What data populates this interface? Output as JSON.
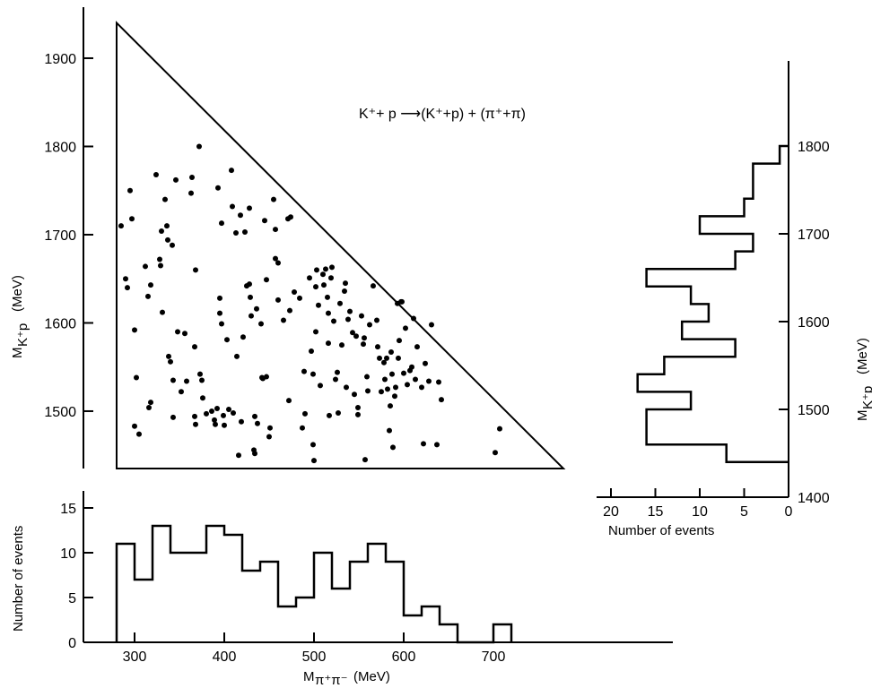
{
  "title": "K⁺+ p ⟶(K⁺+p) + (π⁺+π)",
  "chart_data": [
    {
      "type": "scatter",
      "name": "dalitz",
      "xlabel": "",
      "ylabel": "M_K+p (MeV)",
      "ylabel_main": "M",
      "ylabel_sub": "K⁺p",
      "ylabel_unit": "(MeV)",
      "xlim": [
        280,
        780
      ],
      "ylim": [
        1435,
        1945
      ],
      "y_ticks": [
        1500,
        1600,
        1700,
        1800,
        1900
      ],
      "y_tick_labels": [
        "1500",
        "1600",
        "1700",
        "1800",
        "1900"
      ],
      "boundary": [
        [
          280,
          1940
        ],
        [
          280,
          1435
        ],
        [
          778,
          1435
        ]
      ],
      "points": [
        [
          285,
          1710
        ],
        [
          290,
          1650
        ],
        [
          292,
          1640
        ],
        [
          295,
          1750
        ],
        [
          297,
          1718
        ],
        [
          300,
          1592
        ],
        [
          302,
          1538
        ],
        [
          300,
          1483
        ],
        [
          305,
          1474
        ],
        [
          312,
          1664
        ],
        [
          315,
          1630
        ],
        [
          318,
          1643
        ],
        [
          318,
          1510
        ],
        [
          316,
          1504
        ],
        [
          324,
          1768
        ],
        [
          328,
          1672
        ],
        [
          329,
          1665
        ],
        [
          330,
          1704
        ],
        [
          331,
          1612
        ],
        [
          334,
          1740
        ],
        [
          336,
          1710
        ],
        [
          337,
          1694
        ],
        [
          338,
          1562
        ],
        [
          340,
          1556
        ],
        [
          342,
          1688
        ],
        [
          343,
          1535
        ],
        [
          343,
          1493
        ],
        [
          346,
          1762
        ],
        [
          348,
          1590
        ],
        [
          352,
          1522
        ],
        [
          356,
          1588
        ],
        [
          358,
          1534
        ],
        [
          363,
          1747
        ],
        [
          364,
          1765
        ],
        [
          367,
          1573
        ],
        [
          367,
          1494
        ],
        [
          368,
          1485
        ],
        [
          368,
          1660
        ],
        [
          373,
          1542
        ],
        [
          375,
          1535
        ],
        [
          376,
          1515
        ],
        [
          372,
          1800
        ],
        [
          380,
          1497
        ],
        [
          386,
          1500
        ],
        [
          389,
          1490
        ],
        [
          390,
          1485
        ],
        [
          392,
          1503
        ],
        [
          393,
          1753
        ],
        [
          395,
          1628
        ],
        [
          395,
          1611
        ],
        [
          397,
          1599
        ],
        [
          397,
          1713
        ],
        [
          399,
          1495
        ],
        [
          400,
          1484
        ],
        [
          403,
          1581
        ],
        [
          405,
          1502
        ],
        [
          408,
          1773
        ],
        [
          409,
          1732
        ],
        [
          410,
          1498
        ],
        [
          413,
          1702
        ],
        [
          414,
          1562
        ],
        [
          416,
          1450
        ],
        [
          418,
          1722
        ],
        [
          419,
          1488
        ],
        [
          421,
          1584
        ],
        [
          423,
          1703
        ],
        [
          425,
          1642
        ],
        [
          428,
          1644
        ],
        [
          428,
          1730
        ],
        [
          429,
          1629
        ],
        [
          430,
          1608
        ],
        [
          433,
          1456
        ],
        [
          434,
          1452
        ],
        [
          434,
          1494
        ],
        [
          436,
          1616
        ],
        [
          437,
          1486
        ],
        [
          441,
          1599
        ],
        [
          442,
          1538
        ],
        [
          443,
          1537
        ],
        [
          445,
          1716
        ],
        [
          447,
          1649
        ],
        [
          447,
          1539
        ],
        [
          450,
          1471
        ],
        [
          451,
          1481
        ],
        [
          455,
          1740
        ],
        [
          457,
          1673
        ],
        [
          457,
          1706
        ],
        [
          460,
          1668
        ],
        [
          460,
          1626
        ],
        [
          466,
          1603
        ],
        [
          471,
          1718
        ],
        [
          472,
          1512
        ],
        [
          473,
          1614
        ],
        [
          474,
          1720
        ],
        [
          478,
          1635
        ],
        [
          484,
          1628
        ],
        [
          487,
          1481
        ],
        [
          489,
          1545
        ],
        [
          490,
          1497
        ],
        [
          495,
          1651
        ],
        [
          497,
          1568
        ],
        [
          499,
          1542
        ],
        [
          499,
          1462
        ],
        [
          500,
          1444
        ],
        [
          502,
          1590
        ],
        [
          502,
          1641
        ],
        [
          503,
          1660
        ],
        [
          505,
          1620
        ],
        [
          507,
          1529
        ],
        [
          510,
          1655
        ],
        [
          511,
          1643
        ],
        [
          513,
          1661
        ],
        [
          515,
          1629
        ],
        [
          516,
          1577
        ],
        [
          516,
          1611
        ],
        [
          517,
          1495
        ],
        [
          519,
          1651
        ],
        [
          520,
          1663
        ],
        [
          522,
          1602
        ],
        [
          524,
          1536
        ],
        [
          526,
          1544
        ],
        [
          527,
          1498
        ],
        [
          529,
          1622
        ],
        [
          531,
          1575
        ],
        [
          534,
          1636
        ],
        [
          535,
          1645
        ],
        [
          536,
          1527
        ],
        [
          538,
          1604
        ],
        [
          540,
          1613
        ],
        [
          543,
          1589
        ],
        [
          545,
          1519
        ],
        [
          547,
          1585
        ],
        [
          549,
          1504
        ],
        [
          549,
          1496
        ],
        [
          553,
          1608
        ],
        [
          555,
          1576
        ],
        [
          556,
          1583
        ],
        [
          557,
          1445
        ],
        [
          559,
          1539
        ],
        [
          560,
          1523
        ],
        [
          562,
          1598
        ],
        [
          566,
          1642
        ],
        [
          570,
          1603
        ],
        [
          571,
          1573
        ],
        [
          573,
          1560
        ],
        [
          575,
          1522
        ],
        [
          578,
          1555
        ],
        [
          579,
          1536
        ],
        [
          581,
          1560
        ],
        [
          582,
          1525
        ],
        [
          584,
          1478
        ],
        [
          585,
          1506
        ],
        [
          586,
          1567
        ],
        [
          587,
          1542
        ],
        [
          588,
          1459
        ],
        [
          590,
          1517
        ],
        [
          591,
          1527
        ],
        [
          593,
          1622
        ],
        [
          594,
          1560
        ],
        [
          595,
          1580
        ],
        [
          597,
          1624
        ],
        [
          598,
          1624
        ],
        [
          600,
          1543
        ],
        [
          602,
          1594
        ],
        [
          604,
          1530
        ],
        [
          607,
          1546
        ],
        [
          609,
          1550
        ],
        [
          611,
          1605
        ],
        [
          613,
          1536
        ],
        [
          615,
          1573
        ],
        [
          620,
          1527
        ],
        [
          622,
          1463
        ],
        [
          624,
          1554
        ],
        [
          628,
          1534
        ],
        [
          631,
          1598
        ],
        [
          637,
          1462
        ],
        [
          639,
          1533
        ],
        [
          642,
          1513
        ],
        [
          702,
          1453
        ],
        [
          707,
          1480
        ]
      ]
    },
    {
      "type": "bar",
      "name": "m-pipi-histogram",
      "orientation": "vertical",
      "xlabel": "M_π+π- (MeV)",
      "xlabel_main": "M",
      "xlabel_sub": "π⁺π⁻",
      "xlabel_unit": "(MeV)",
      "ylabel": "Number of events",
      "xlim": [
        250,
        750
      ],
      "ylim": [
        0,
        17
      ],
      "x_ticks": [
        300,
        400,
        500,
        600,
        700
      ],
      "x_tick_labels": [
        "300",
        "400",
        "500",
        "600",
        "700"
      ],
      "y_ticks": [
        0,
        5,
        10,
        15
      ],
      "y_tick_labels": [
        "0",
        "5",
        "10",
        "15"
      ],
      "bin_edges": [
        280,
        300,
        320,
        340,
        360,
        380,
        400,
        420,
        440,
        460,
        480,
        500,
        520,
        540,
        560,
        580,
        600,
        620,
        640,
        660,
        680,
        700,
        720
      ],
      "values": [
        11,
        7,
        13,
        10,
        10,
        13,
        12,
        8,
        9,
        4,
        5,
        10,
        6,
        9,
        11,
        9,
        3,
        4,
        2,
        0,
        0,
        2
      ]
    },
    {
      "type": "bar",
      "name": "m-kp-histogram",
      "orientation": "horizontal",
      "xlabel": "Number of events",
      "ylabel": "M_K+p (MeV)",
      "ylabel_main": "M",
      "ylabel_sub": "K⁺p",
      "ylabel_unit": "(MeV)",
      "xlim": [
        22,
        0
      ],
      "ylim": [
        1400,
        1890
      ],
      "x_ticks": [
        20,
        15,
        10,
        5,
        0
      ],
      "x_tick_labels": [
        "20",
        "15",
        "10",
        "5",
        "0"
      ],
      "y_ticks": [
        1400,
        1500,
        1600,
        1700,
        1800
      ],
      "y_tick_labels": [
        "1400",
        "1500",
        "1600",
        "1700",
        "1800"
      ],
      "bin_edges": [
        1440,
        1460,
        1480,
        1500,
        1520,
        1540,
        1560,
        1580,
        1600,
        1620,
        1640,
        1660,
        1680,
        1700,
        1720,
        1740,
        1760,
        1780,
        1800
      ],
      "values": [
        7,
        16,
        16,
        11,
        17,
        14,
        6,
        12,
        9,
        11,
        16,
        6,
        4,
        10,
        5,
        4,
        4,
        1
      ]
    }
  ]
}
